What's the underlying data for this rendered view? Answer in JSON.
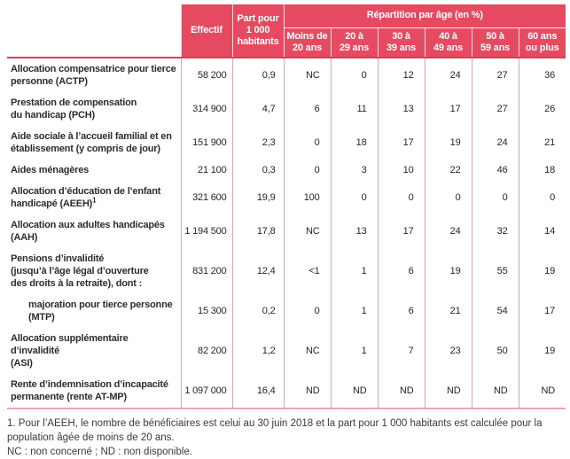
{
  "colors": {
    "header_bg": "#e54a60",
    "strong_line": "#d6405a",
    "grid_line": "#ef9fae",
    "bottom_line": "#eda7b3",
    "text": "#2d2d2d"
  },
  "header": {
    "effectif": "Effectif",
    "part": "Part pour\n1 000\nhabitants",
    "repartition": "Répartition par âge (en %)",
    "age_columns": [
      "Moins de\n20 ans",
      "20 à\n29 ans",
      "30 à\n39 ans",
      "40 à\n49 ans",
      "50 à\n59 ans",
      "60 ans\nou plus"
    ]
  },
  "rows": [
    {
      "label": "Allocation compensatrice pour tierce\npersonne (ACTP)",
      "values": [
        "58 200",
        "0,9",
        "NC",
        "0",
        "12",
        "24",
        "27",
        "36"
      ]
    },
    {
      "label": "Prestation de compensation\ndu handicap (PCH)",
      "values": [
        "314 900",
        "4,7",
        "6",
        "11",
        "13",
        "17",
        "27",
        "26"
      ]
    },
    {
      "label": "Aide sociale à l’accueil familial et en\nétablissement (y compris de jour)",
      "values": [
        "151 900",
        "2,3",
        "0",
        "18",
        "17",
        "19",
        "24",
        "21"
      ]
    },
    {
      "label": "Aides ménagères",
      "values": [
        "21 100",
        "0,3",
        "0",
        "3",
        "10",
        "22",
        "46",
        "18"
      ]
    },
    {
      "label": "Allocation d’éducation de l’enfant\nhandicapé (AEEH)",
      "sup": "1",
      "values": [
        "321 600",
        "19,9",
        "100",
        "0",
        "0",
        "0",
        "0",
        "0"
      ]
    },
    {
      "label": "Allocation aux adultes handicapés (AAH)",
      "values": [
        "1 194 500",
        "17,8",
        "NC",
        "13",
        "17",
        "24",
        "32",
        "14"
      ]
    },
    {
      "label": "Pensions d’invalidité\n(jusqu’à l’âge légal d’ouverture\ndes droits à la retraite), dont :",
      "values": [
        "831 200",
        "12,4",
        "<1",
        "1",
        "6",
        "19",
        "55",
        "19"
      ]
    },
    {
      "label": "majoration pour tierce personne (MTP)",
      "values": [
        "15 300",
        "0,2",
        "0",
        "1",
        "6",
        "21",
        "54",
        "17"
      ]
    },
    {
      "label": "Allocation supplémentaire d’invalidité\n(ASI)",
      "values": [
        "82 200",
        "1,2",
        "NC",
        "1",
        "7",
        "23",
        "50",
        "19"
      ]
    },
    {
      "label": "Rente d’indemnisation d’incapacité\npermanente (rente AT-MP)",
      "values": [
        "1 097 000",
        "16,4",
        "ND",
        "ND",
        "ND",
        "ND",
        "ND",
        "ND"
      ]
    }
  ],
  "footnotes": {
    "note1": "1. Pour l’AEEH, le nombre de bénéficiaires est celui au 30 juin 2018 et la part pour 1 000 habitants est calculée pour la population âgée de moins de 20 ans.",
    "note2": "NC : non concerné ; ND : non disponible."
  }
}
